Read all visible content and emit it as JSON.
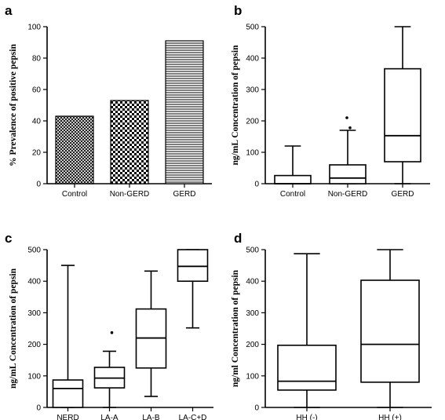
{
  "chart_data": [
    {
      "panel": "a",
      "type": "bar",
      "categories": [
        "Control",
        "Non-GERD",
        "GERD"
      ],
      "values": [
        43,
        53,
        91
      ],
      "ylabel": "% Prevalence of positive pepsin",
      "xlabel": "",
      "ylim": [
        0,
        100
      ],
      "yticks": [
        0,
        20,
        40,
        60,
        80,
        100
      ],
      "fills": [
        "crosshatch",
        "checker",
        "hlines"
      ]
    },
    {
      "panel": "b",
      "type": "box",
      "categories": [
        "Control",
        "Non-GERD",
        "GERD"
      ],
      "boxes": [
        {
          "min": 0,
          "q1": 0,
          "median": 0,
          "q3": 26,
          "max": 120,
          "outliers": []
        },
        {
          "min": 0,
          "q1": 0,
          "median": 18,
          "q3": 60,
          "max": 170,
          "outliers": [
            178,
            210
          ]
        },
        {
          "min": 0,
          "q1": 70,
          "median": 153,
          "q3": 366,
          "max": 500,
          "outliers": []
        }
      ],
      "ylabel": "ng/mL Concentration of pepsin",
      "xlabel": "",
      "ylim": [
        0,
        500
      ],
      "yticks": [
        0,
        100,
        200,
        300,
        400,
        500
      ]
    },
    {
      "panel": "c",
      "type": "box",
      "categories": [
        "NERD",
        "LA-A",
        "LA-B",
        "LA-C+D"
      ],
      "boxes": [
        {
          "min": 0,
          "q1": 0,
          "median": 60,
          "q3": 87,
          "max": 450,
          "outliers": []
        },
        {
          "min": 0,
          "q1": 62,
          "median": 93,
          "q3": 127,
          "max": 178,
          "outliers": [
            237
          ]
        },
        {
          "min": 35,
          "q1": 125,
          "median": 220,
          "q3": 312,
          "max": 432,
          "outliers": []
        },
        {
          "min": 252,
          "q1": 400,
          "median": 447,
          "q3": 500,
          "max": 500,
          "outliers": []
        }
      ],
      "ylabel": "ng/mL Concentration of pepsin",
      "xlabel": "",
      "ylim": [
        0,
        500
      ],
      "yticks": [
        0,
        100,
        200,
        300,
        400,
        500
      ]
    },
    {
      "panel": "d",
      "type": "box",
      "categories": [
        "HH (-)",
        "HH (+)"
      ],
      "boxes": [
        {
          "min": 0,
          "q1": 55,
          "median": 83,
          "q3": 197,
          "max": 487,
          "outliers": []
        },
        {
          "min": 0,
          "q1": 80,
          "median": 200,
          "q3": 403,
          "max": 500,
          "outliers": []
        }
      ],
      "ylabel": "ng/ml Concentration of pepsin",
      "xlabel": "",
      "ylim": [
        0,
        500
      ],
      "yticks": [
        0,
        100,
        200,
        300,
        400,
        500
      ]
    }
  ]
}
